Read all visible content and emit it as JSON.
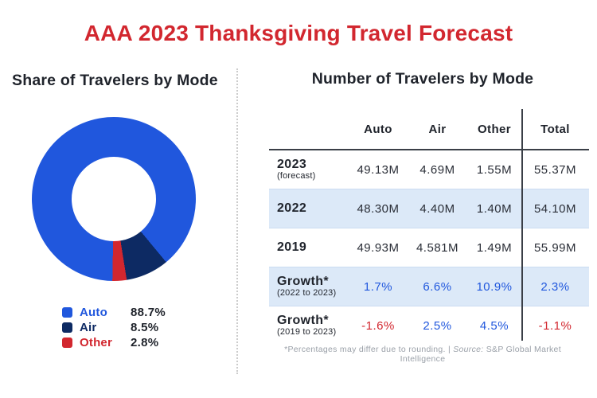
{
  "title": "AAA 2023 Thanksgiving Travel Forecast",
  "colors": {
    "accent_red": "#D2272F",
    "brand_blue": "#2057DD",
    "navy": "#0D2A63",
    "row_highlight": "#DCE9F8",
    "row_border": "#CBDCF2",
    "text_dark": "#1F232B",
    "value_dark": "#2A2E37",
    "line_dark": "#3A3F47",
    "footnote_gray": "#9AA0A8",
    "divider_gray": "#CCCCCC"
  },
  "left_panel": {
    "heading": "Share of Travelers by Mode",
    "legend": [
      {
        "label": "Auto",
        "value": "88.7%",
        "color": "#2057DD"
      },
      {
        "label": "Air",
        "value": "8.5%",
        "color": "#0D2A63"
      },
      {
        "label": "Other",
        "value": "2.8%",
        "color": "#D2272F"
      }
    ]
  },
  "right_panel": {
    "heading": "Number of Travelers by Mode",
    "table": {
      "columns": [
        "Auto",
        "Air",
        "Other",
        "Total"
      ],
      "rows": [
        {
          "label": "2023",
          "sublabel": "(forecast)",
          "highlight": false,
          "values": [
            "49.13M",
            "4.69M",
            "1.55M",
            "55.37M"
          ],
          "styles": [
            "dark",
            "dark",
            "dark",
            "dark"
          ]
        },
        {
          "label": "2022",
          "sublabel": "",
          "highlight": true,
          "values": [
            "48.30M",
            "4.40M",
            "1.40M",
            "54.10M"
          ],
          "styles": [
            "dark",
            "dark",
            "dark",
            "dark"
          ]
        },
        {
          "label": "2019",
          "sublabel": "",
          "highlight": false,
          "values": [
            "49.93M",
            "4.581M",
            "1.49M",
            "55.99M"
          ],
          "styles": [
            "dark",
            "dark",
            "dark",
            "dark"
          ]
        },
        {
          "label": "Growth*",
          "sublabel": "(2022 to 2023)",
          "highlight": true,
          "values": [
            "1.7%",
            "6.6%",
            "10.9%",
            "2.3%"
          ],
          "styles": [
            "blue",
            "blue",
            "blue",
            "blue"
          ]
        },
        {
          "label": "Growth*",
          "sublabel": "(2019 to 2023)",
          "highlight": false,
          "values": [
            "-1.6%",
            "2.5%",
            "4.5%",
            "-1.1%"
          ],
          "styles": [
            "red",
            "blue",
            "blue",
            "red"
          ]
        }
      ]
    },
    "footnote": {
      "prefix": "*Percentages may differ due to rounding. | ",
      "source_label": "Source:",
      "source_text": " S&P Global Market Intelligence"
    }
  },
  "chart_data": [
    {
      "type": "pie",
      "title": "Share of Travelers by Mode",
      "labels": [
        "Auto",
        "Air",
        "Other"
      ],
      "values": [
        88.7,
        8.5,
        2.8
      ],
      "unit": "%",
      "colors": [
        "#2057DD",
        "#0D2A63",
        "#D2272F"
      ],
      "donut": true,
      "start_angle_deg_clockwise_from_top": 181,
      "legend_position": "bottom"
    },
    {
      "type": "table",
      "title": "Number of Travelers by Mode",
      "columns": [
        "",
        "Auto",
        "Air",
        "Other",
        "Total"
      ],
      "rows": [
        [
          "2023 (forecast)",
          "49.13M",
          "4.69M",
          "1.55M",
          "55.37M"
        ],
        [
          "2022",
          "48.30M",
          "4.40M",
          "1.40M",
          "54.10M"
        ],
        [
          "2019",
          "49.93M",
          "4.581M",
          "1.49M",
          "55.99M"
        ],
        [
          "Growth* (2022 to 2023)",
          "1.7%",
          "6.6%",
          "10.9%",
          "2.3%"
        ],
        [
          "Growth* (2019 to 2023)",
          "-1.6%",
          "2.5%",
          "4.5%",
          "-1.1%"
        ]
      ],
      "footnote": "*Percentages may differ due to rounding. | Source: S&P Global Market Intelligence"
    }
  ]
}
